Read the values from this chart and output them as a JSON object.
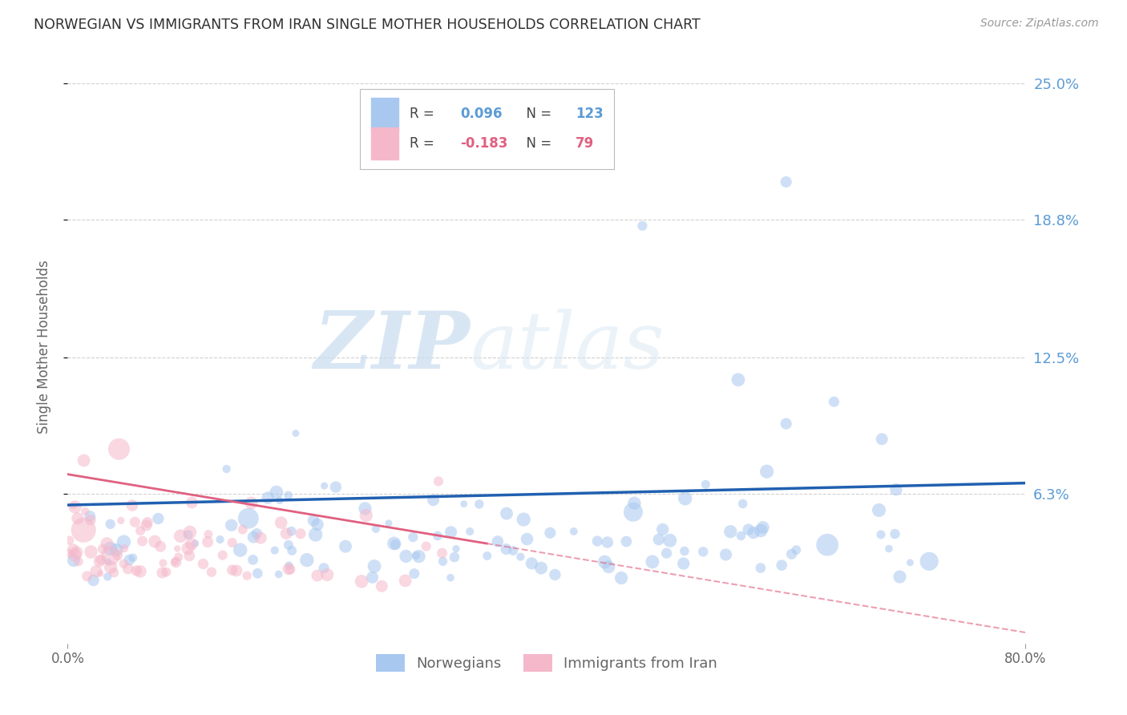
{
  "title": "NORWEGIAN VS IMMIGRANTS FROM IRAN SINGLE MOTHER HOUSEHOLDS CORRELATION CHART",
  "source": "Source: ZipAtlas.com",
  "ylabel": "Single Mother Households",
  "xlim": [
    0.0,
    0.8
  ],
  "ylim": [
    -0.005,
    0.265
  ],
  "ytick_positions": [
    0.063,
    0.125,
    0.188,
    0.25
  ],
  "ytick_labels": [
    "6.3%",
    "12.5%",
    "18.8%",
    "25.0%"
  ],
  "xtick_positions": [
    0.0,
    0.8
  ],
  "xtick_labels": [
    "0.0%",
    "80.0%"
  ],
  "norwegian_R": 0.096,
  "norwegian_N": 123,
  "iran_R": -0.183,
  "iran_N": 79,
  "norwegian_color": "#a8c8f0",
  "iran_color": "#f5b8cb",
  "norwegian_line_color": "#2060b0",
  "iran_line_color": "#e06080",
  "watermark_text": "ZIPatlas",
  "watermark_color": "#dce8f5",
  "background_color": "#ffffff",
  "grid_color": "#cccccc",
  "title_color": "#303030",
  "axis_label_color": "#666666",
  "right_tick_color": "#5b9bd5",
  "legend_title_nor_R": "R = ",
  "legend_title_nor_N": "N = ",
  "legend_R_nor_val": "0.096",
  "legend_N_nor_val": "123",
  "legend_R_iran_val": "-0.183",
  "legend_N_iran_val": "79"
}
